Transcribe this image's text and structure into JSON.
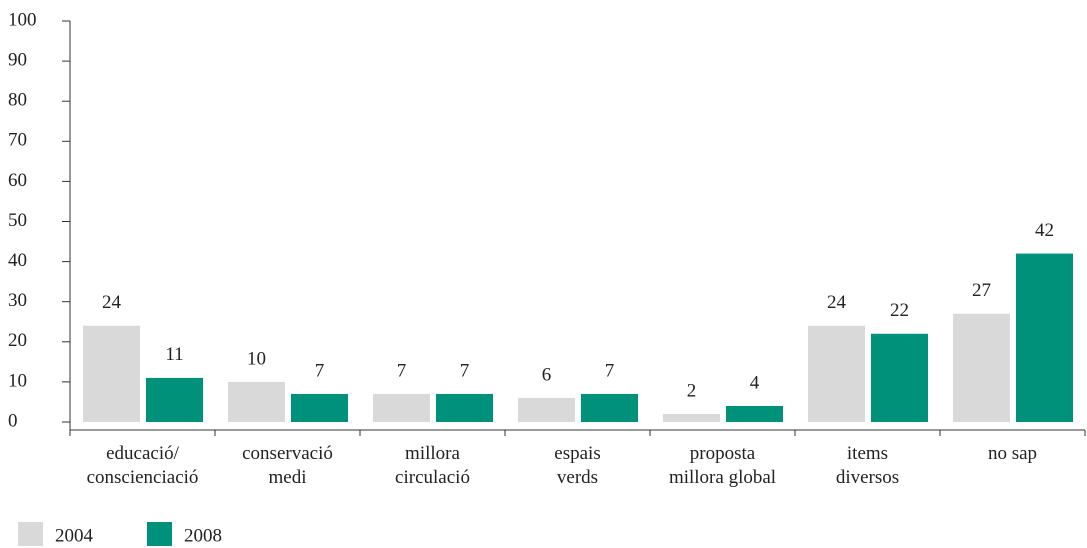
{
  "chart_data": {
    "type": "bar",
    "categories": [
      [
        "educació/",
        "conscienciació"
      ],
      [
        "conservació",
        "medi"
      ],
      [
        "millora",
        "circulació"
      ],
      [
        "espais",
        "verds"
      ],
      [
        "proposta",
        "millora global"
      ],
      [
        "items",
        "diversos"
      ],
      [
        "no sap"
      ]
    ],
    "series": [
      {
        "name": "2004",
        "color": "#d9d9d9",
        "values": [
          24,
          10,
          7,
          6,
          2,
          24,
          27
        ]
      },
      {
        "name": "2008",
        "color": "#00917a",
        "values": [
          11,
          7,
          7,
          7,
          4,
          22,
          42
        ]
      }
    ],
    "ylim": [
      0,
      100
    ],
    "yticks": [
      0,
      10,
      20,
      30,
      40,
      50,
      60,
      70,
      80,
      90,
      100
    ],
    "grid": false,
    "legend": "bottom-left"
  }
}
